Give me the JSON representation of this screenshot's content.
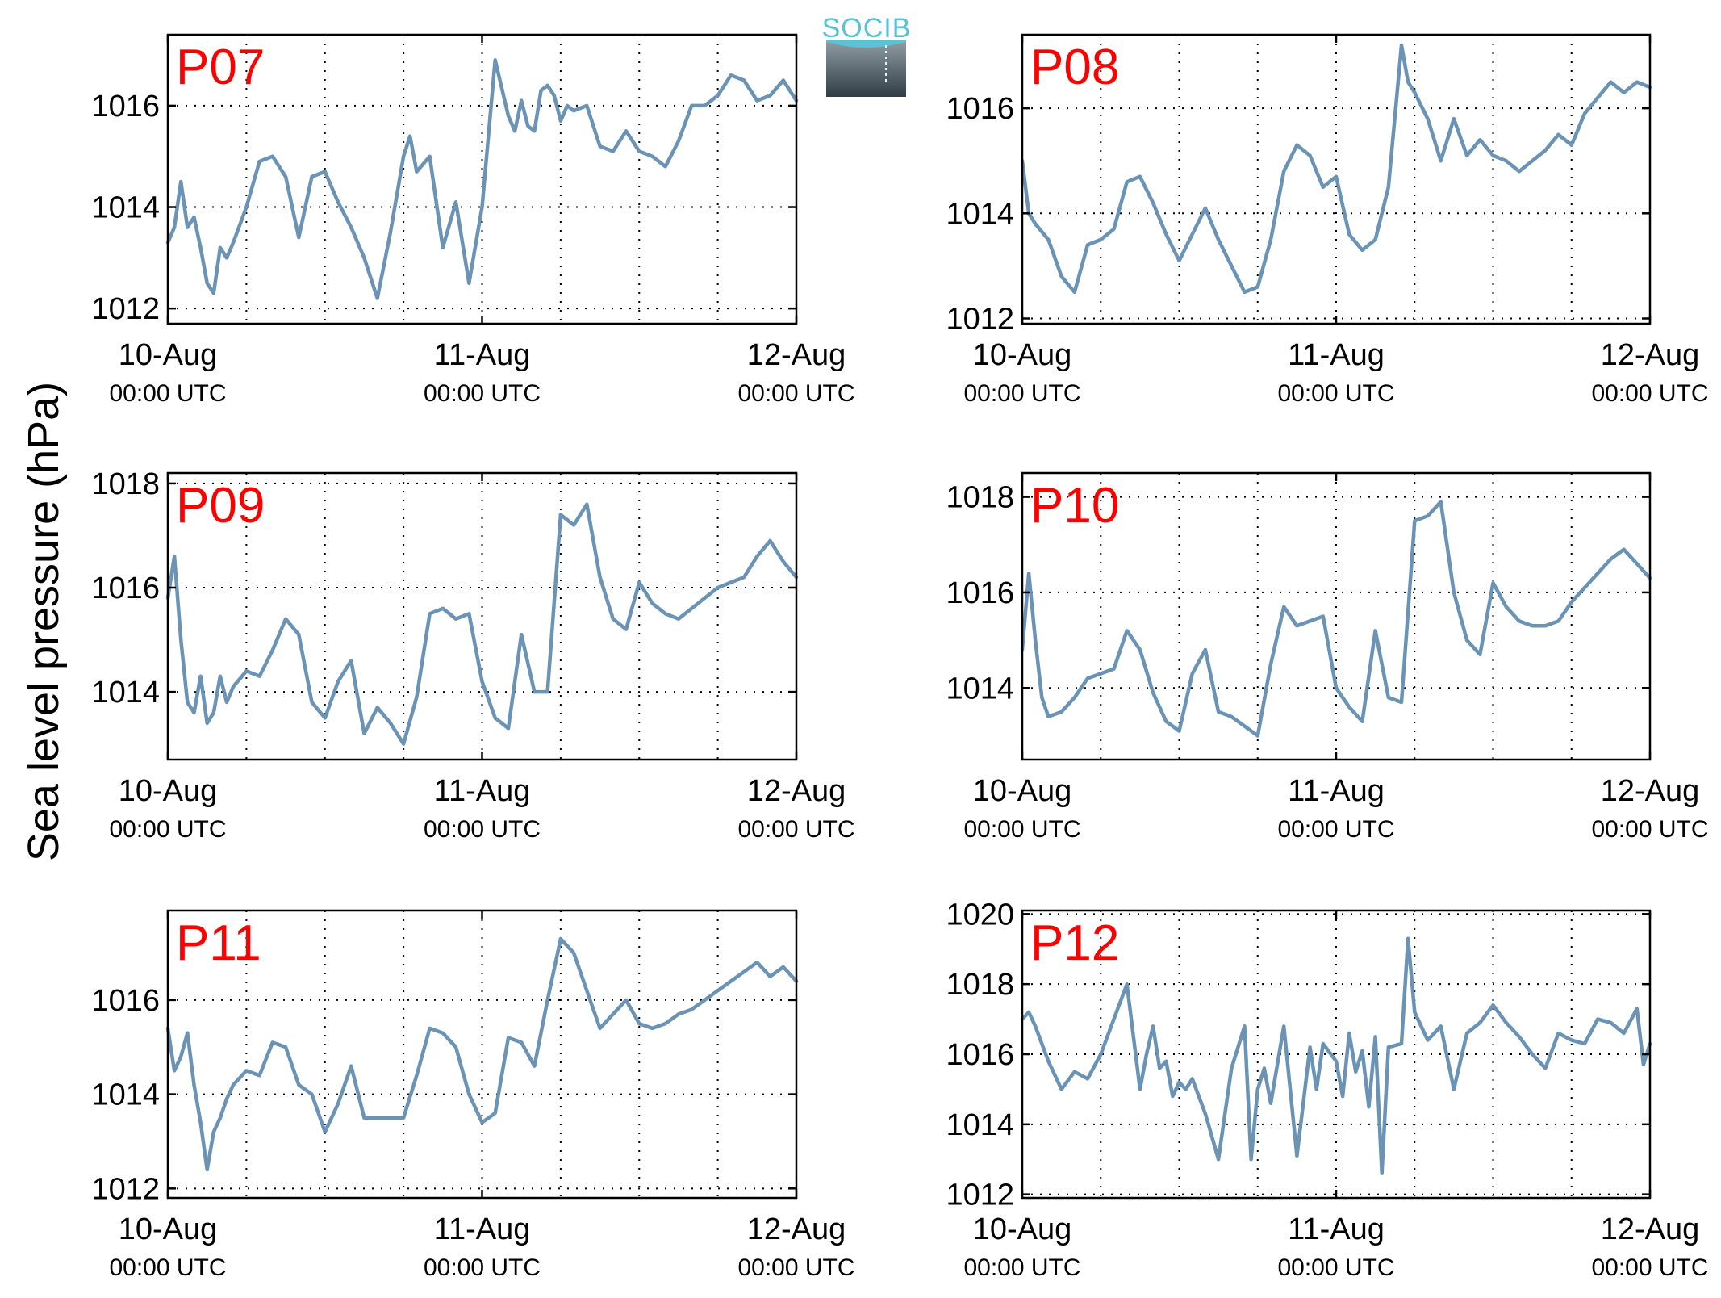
{
  "ylabel": "Sea level pressure (hPa)",
  "logo": {
    "text": "SOCIB",
    "color": "#5bc2d6"
  },
  "colors": {
    "series": "#6a93b5",
    "station_label": "#ff0000"
  },
  "x_ticks": [
    {
      "x": 0,
      "date": "10-Aug",
      "time": "00:00 UTC"
    },
    {
      "x": 24,
      "date": "11-Aug",
      "time": "00:00 UTC"
    },
    {
      "x": 48,
      "date": "12-Aug",
      "time": "00:00 UTC"
    }
  ],
  "chart_data": [
    {
      "type": "line",
      "label": "P07",
      "xunit": "hours since 10-Aug 00:00 UTC",
      "xlim": [
        0,
        48
      ],
      "ylim": [
        1011.7,
        1017.4
      ],
      "yticks": [
        1012,
        1014,
        1016
      ],
      "grid": true,
      "x": [
        0,
        0.5,
        1,
        1.5,
        2,
        2.5,
        3,
        3.5,
        4,
        4.5,
        5,
        6,
        7,
        8,
        9,
        10,
        11,
        12,
        13,
        14,
        15,
        16,
        17,
        18,
        18.5,
        19,
        20,
        21,
        22,
        23,
        24,
        25,
        26,
        26.5,
        27,
        27.5,
        28,
        28.5,
        29,
        29.5,
        30,
        30.5,
        31,
        32,
        33,
        34,
        35,
        36,
        37,
        38,
        39,
        40,
        41,
        42,
        43,
        44,
        45,
        46,
        47,
        48
      ],
      "values": [
        1013.3,
        1013.6,
        1014.5,
        1013.6,
        1013.8,
        1013.2,
        1012.5,
        1012.3,
        1013.2,
        1013.0,
        1013.3,
        1014.0,
        1014.9,
        1015.0,
        1014.6,
        1013.4,
        1014.6,
        1014.7,
        1014.1,
        1013.6,
        1013.0,
        1012.2,
        1013.5,
        1015.0,
        1015.4,
        1014.7,
        1015.0,
        1013.2,
        1014.1,
        1012.5,
        1014.0,
        1016.9,
        1015.8,
        1015.5,
        1016.1,
        1015.6,
        1015.5,
        1016.3,
        1016.4,
        1016.2,
        1015.7,
        1016.0,
        1015.9,
        1016.0,
        1015.2,
        1015.1,
        1015.5,
        1015.1,
        1015.0,
        1014.8,
        1015.3,
        1016.0,
        1016.0,
        1016.2,
        1016.6,
        1016.5,
        1016.1,
        1016.2,
        1016.5,
        1016.1
      ]
    },
    {
      "type": "line",
      "label": "P08",
      "xunit": "hours since 10-Aug 00:00 UTC",
      "xlim": [
        0,
        48
      ],
      "ylim": [
        1011.9,
        1017.4
      ],
      "yticks": [
        1012,
        1014,
        1016
      ],
      "grid": true,
      "x": [
        0,
        0.5,
        1,
        2,
        3,
        4,
        5,
        6,
        7,
        8,
        9,
        10,
        11,
        12,
        13,
        14,
        15,
        16,
        17,
        18,
        19,
        20,
        21,
        22,
        23,
        24,
        25,
        26,
        27,
        28,
        29,
        29.5,
        30,
        31,
        32,
        33,
        34,
        35,
        36,
        37,
        38,
        39,
        40,
        41,
        42,
        43,
        44,
        45,
        46,
        47,
        48
      ],
      "values": [
        1015.0,
        1014.0,
        1013.8,
        1013.5,
        1012.8,
        1012.5,
        1013.4,
        1013.5,
        1013.7,
        1014.6,
        1014.7,
        1014.2,
        1013.6,
        1013.1,
        1013.6,
        1014.1,
        1013.5,
        1013.0,
        1012.5,
        1012.6,
        1013.5,
        1014.8,
        1015.3,
        1015.1,
        1014.5,
        1014.7,
        1013.6,
        1013.3,
        1013.5,
        1014.5,
        1017.2,
        1016.5,
        1016.3,
        1015.8,
        1015.0,
        1015.8,
        1015.1,
        1015.4,
        1015.1,
        1015.0,
        1014.8,
        1015.0,
        1015.2,
        1015.5,
        1015.3,
        1015.9,
        1016.2,
        1016.5,
        1016.3,
        1016.5,
        1016.4
      ]
    },
    {
      "type": "line",
      "label": "P09",
      "xunit": "hours since 10-Aug 00:00 UTC",
      "xlim": [
        0,
        48
      ],
      "ylim": [
        1012.7,
        1018.2
      ],
      "yticks": [
        1014,
        1016,
        1018
      ],
      "grid": true,
      "x": [
        0,
        0.5,
        1,
        1.5,
        2,
        2.5,
        3,
        3.5,
        4,
        4.5,
        5,
        6,
        7,
        8,
        9,
        10,
        11,
        12,
        13,
        14,
        15,
        16,
        17,
        18,
        19,
        20,
        21,
        22,
        23,
        24,
        25,
        26,
        27,
        28,
        29,
        30,
        31,
        32,
        33,
        34,
        35,
        36,
        37,
        38,
        39,
        40,
        41,
        42,
        43,
        44,
        45,
        46,
        47,
        48
      ],
      "values": [
        1015.8,
        1016.6,
        1015.0,
        1013.8,
        1013.6,
        1014.3,
        1013.4,
        1013.6,
        1014.3,
        1013.8,
        1014.1,
        1014.4,
        1014.3,
        1014.8,
        1015.4,
        1015.1,
        1013.8,
        1013.5,
        1014.2,
        1014.6,
        1013.2,
        1013.7,
        1013.4,
        1013.0,
        1013.9,
        1015.5,
        1015.6,
        1015.4,
        1015.5,
        1014.2,
        1013.5,
        1013.3,
        1015.1,
        1014.0,
        1014.0,
        1017.4,
        1017.2,
        1017.6,
        1016.2,
        1015.4,
        1015.2,
        1016.1,
        1015.7,
        1015.5,
        1015.4,
        1015.6,
        1015.8,
        1016.0,
        1016.1,
        1016.2,
        1016.6,
        1016.9,
        1016.5,
        1016.2
      ]
    },
    {
      "type": "line",
      "label": "P10",
      "xunit": "hours since 10-Aug 00:00 UTC",
      "xlim": [
        0,
        48
      ],
      "ylim": [
        1012.5,
        1018.5
      ],
      "yticks": [
        1014,
        1016,
        1018
      ],
      "grid": true,
      "x": [
        0,
        0.5,
        1,
        1.5,
        2,
        3,
        4,
        5,
        6,
        7,
        8,
        9,
        10,
        11,
        12,
        13,
        14,
        15,
        16,
        17,
        18,
        19,
        20,
        21,
        22,
        23,
        24,
        25,
        26,
        27,
        28,
        29,
        30,
        31,
        32,
        33,
        34,
        35,
        36,
        37,
        38,
        39,
        40,
        41,
        42,
        43,
        44,
        45,
        46,
        47,
        48
      ],
      "values": [
        1014.8,
        1016.4,
        1015.0,
        1013.8,
        1013.4,
        1013.5,
        1013.8,
        1014.2,
        1014.3,
        1014.4,
        1015.2,
        1014.8,
        1013.9,
        1013.3,
        1013.1,
        1014.3,
        1014.8,
        1013.5,
        1013.4,
        1013.2,
        1013.0,
        1014.5,
        1015.7,
        1015.3,
        1015.4,
        1015.5,
        1014.0,
        1013.6,
        1013.3,
        1015.2,
        1013.8,
        1013.7,
        1017.5,
        1017.6,
        1017.9,
        1016.0,
        1015.0,
        1014.7,
        1016.2,
        1015.7,
        1015.4,
        1015.3,
        1015.3,
        1015.4,
        1015.8,
        1016.1,
        1016.4,
        1016.7,
        1016.9,
        1016.6,
        1016.3
      ]
    },
    {
      "type": "line",
      "label": "P11",
      "xunit": "hours since 10-Aug 00:00 UTC",
      "xlim": [
        0,
        48
      ],
      "ylim": [
        1011.8,
        1017.9
      ],
      "yticks": [
        1012,
        1014,
        1016
      ],
      "grid": true,
      "x": [
        0,
        0.5,
        1,
        1.5,
        2,
        2.5,
        3,
        3.5,
        4,
        4.5,
        5,
        6,
        7,
        8,
        9,
        10,
        11,
        12,
        13,
        14,
        15,
        16,
        17,
        18,
        19,
        20,
        21,
        22,
        23,
        24,
        25,
        26,
        27,
        28,
        29,
        30,
        31,
        32,
        33,
        34,
        35,
        36,
        37,
        38,
        39,
        40,
        41,
        42,
        43,
        44,
        45,
        46,
        47,
        48
      ],
      "values": [
        1015.4,
        1014.5,
        1014.8,
        1015.3,
        1014.2,
        1013.4,
        1012.4,
        1013.2,
        1013.5,
        1013.9,
        1014.2,
        1014.5,
        1014.4,
        1015.1,
        1015.0,
        1014.2,
        1014.0,
        1013.2,
        1013.8,
        1014.6,
        1013.5,
        1013.5,
        1013.5,
        1013.5,
        1014.4,
        1015.4,
        1015.3,
        1015.0,
        1014.0,
        1013.4,
        1013.6,
        1015.2,
        1015.1,
        1014.6,
        1016.0,
        1017.3,
        1017.0,
        1016.2,
        1015.4,
        1015.7,
        1016.0,
        1015.5,
        1015.4,
        1015.5,
        1015.7,
        1015.8,
        1016.0,
        1016.2,
        1016.4,
        1016.6,
        1016.8,
        1016.5,
        1016.7,
        1016.4
      ]
    },
    {
      "type": "line",
      "label": "P12",
      "xunit": "hours since 10-Aug 00:00 UTC",
      "xlim": [
        0,
        48
      ],
      "ylim": [
        1011.9,
        1020.1
      ],
      "yticks": [
        1012,
        1014,
        1016,
        1018,
        1020
      ],
      "grid": true,
      "x": [
        0,
        0.5,
        1,
        2,
        3,
        4,
        5,
        6,
        7,
        8,
        8.5,
        9,
        9.5,
        10,
        10.5,
        11,
        11.5,
        12,
        12.5,
        13,
        14,
        15,
        16,
        17,
        17.5,
        18,
        18.5,
        19,
        20,
        21,
        22,
        22.5,
        23,
        24,
        24.5,
        25,
        25.5,
        26,
        26.5,
        27,
        27.5,
        28,
        29,
        29.5,
        30,
        31,
        32,
        33,
        34,
        35,
        36,
        37,
        38,
        39,
        40,
        41,
        42,
        43,
        44,
        45,
        46,
        47,
        47.5,
        48
      ],
      "values": [
        1017.0,
        1017.2,
        1016.8,
        1015.8,
        1015.0,
        1015.5,
        1015.3,
        1016.0,
        1017.0,
        1018.0,
        1016.5,
        1015.0,
        1016.0,
        1016.8,
        1015.6,
        1015.8,
        1014.8,
        1015.2,
        1015.0,
        1015.3,
        1014.3,
        1013.0,
        1015.6,
        1016.8,
        1013.0,
        1015.0,
        1015.6,
        1014.6,
        1016.8,
        1013.1,
        1016.2,
        1015.0,
        1016.3,
        1015.8,
        1014.8,
        1016.6,
        1015.5,
        1016.1,
        1014.5,
        1016.5,
        1012.6,
        1016.2,
        1016.3,
        1019.3,
        1017.2,
        1016.4,
        1016.8,
        1015.0,
        1016.6,
        1016.9,
        1017.4,
        1016.9,
        1016.5,
        1016.0,
        1015.6,
        1016.6,
        1016.4,
        1016.3,
        1017.0,
        1016.9,
        1016.6,
        1017.3,
        1015.7,
        1016.3
      ]
    }
  ]
}
